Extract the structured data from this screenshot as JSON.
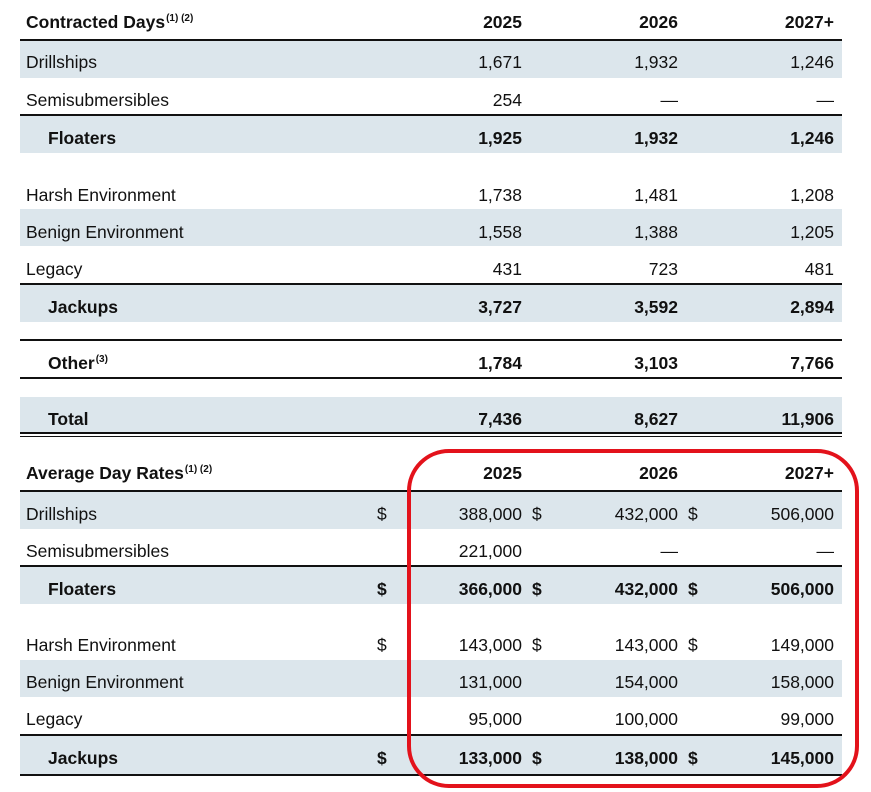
{
  "contracted": {
    "title": "Contracted Days",
    "title_note": "(1) (2)",
    "years": [
      "2025",
      "2026",
      "2027+"
    ],
    "rows": [
      {
        "label": "Drillships",
        "v": [
          "1,671",
          "1,932",
          "1,246"
        ]
      },
      {
        "label": "Semisubmersibles",
        "v": [
          "254",
          "—",
          "—"
        ]
      },
      {
        "label": "Floaters",
        "v": [
          "1,925",
          "1,932",
          "1,246"
        ]
      },
      {
        "label": "Harsh Environment",
        "v": [
          "1,738",
          "1,481",
          "1,208"
        ]
      },
      {
        "label": "Benign Environment",
        "v": [
          "1,558",
          "1,388",
          "1,205"
        ]
      },
      {
        "label": "Legacy",
        "v": [
          "431",
          "723",
          "481"
        ]
      },
      {
        "label": "Jackups",
        "v": [
          "3,727",
          "3,592",
          "2,894"
        ]
      },
      {
        "label": "Other",
        "note": "(3)",
        "v": [
          "1,784",
          "3,103",
          "7,766"
        ]
      },
      {
        "label": "Total",
        "v": [
          "7,436",
          "8,627",
          "11,906"
        ]
      }
    ]
  },
  "rates": {
    "title": "Average Day Rates",
    "title_note": "(1) (2)",
    "years": [
      "2025",
      "2026",
      "2027+"
    ],
    "currency": "$",
    "rows": [
      {
        "label": "Drillships",
        "v": [
          "388,000",
          "432,000",
          "506,000"
        ]
      },
      {
        "label": "Semisubmersibles",
        "v": [
          "221,000",
          "—",
          "—"
        ]
      },
      {
        "label": "Floaters",
        "v": [
          "366,000",
          "432,000",
          "506,000"
        ]
      },
      {
        "label": "Harsh Environment",
        "v": [
          "143,000",
          "143,000",
          "149,000"
        ]
      },
      {
        "label": "Benign Environment",
        "v": [
          "131,000",
          "154,000",
          "158,000"
        ]
      },
      {
        "label": "Legacy",
        "v": [
          "95,000",
          "100,000",
          "99,000"
        ]
      },
      {
        "label": "Jackups",
        "v": [
          "133,000",
          "138,000",
          "145,000"
        ]
      }
    ]
  },
  "colors": {
    "row_shade": "#dce6ec",
    "highlight": "#e3121b"
  }
}
